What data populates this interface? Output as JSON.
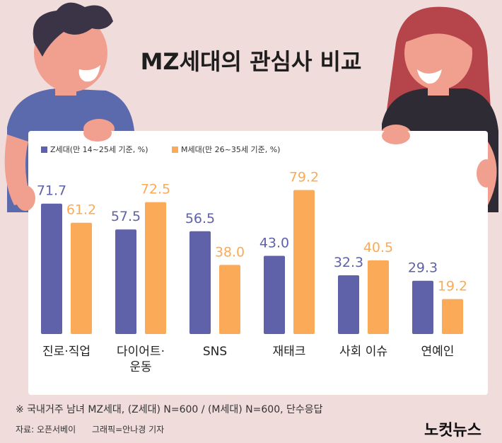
{
  "chart_data": {
    "type": "bar",
    "title": "MZ세대의 관심사 비교",
    "categories": [
      "진로·직업",
      "다이어트·\n운동",
      "SNS",
      "재태크",
      "사회 이슈",
      "연예인"
    ],
    "series": [
      {
        "name": "Z세대(만 14~25세 기준, %)",
        "color": "#5f62a8",
        "values": [
          71.7,
          57.5,
          56.5,
          43.0,
          32.3,
          29.3
        ],
        "value_labels": [
          "71.7",
          "57.5",
          "56.5",
          "43.0",
          "32.3",
          "29.3"
        ]
      },
      {
        "name": "M세대(만 26~35세 기준, %)",
        "color": "#fbab57",
        "values": [
          61.2,
          72.5,
          38.0,
          79.2,
          40.5,
          19.2
        ],
        "value_labels": [
          "61.2",
          "72.5",
          "38.0",
          "79.2",
          "40.5",
          "19.2"
        ]
      }
    ],
    "note": "※ 국내거주 남녀 MZ세대, (Z세대) N=600 / (M세대) N=600, 단수응답",
    "source": "자료: 오픈서베이",
    "credit": "그래픽=안나경 기자",
    "logo": "노컷뉴스"
  }
}
